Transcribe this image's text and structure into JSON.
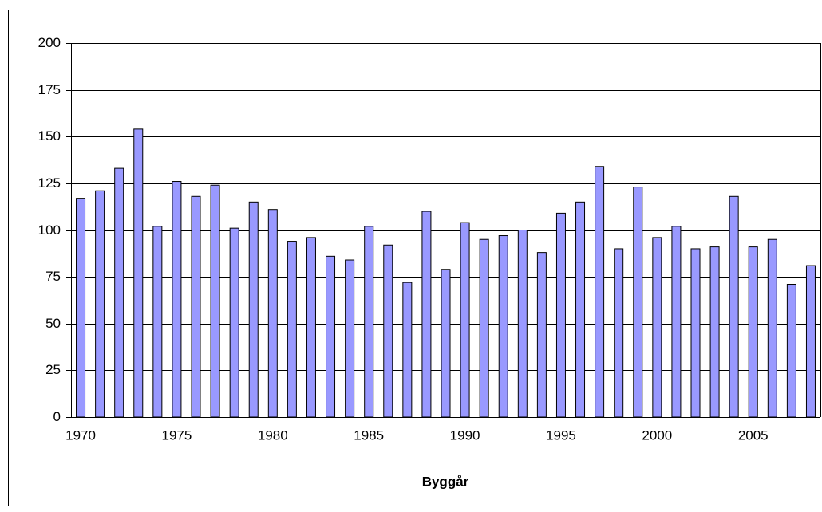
{
  "chart_data": {
    "type": "bar",
    "x_label": "Byggår",
    "categories": [
      "1970",
      null,
      null,
      null,
      null,
      "1975",
      null,
      null,
      null,
      null,
      "1980",
      null,
      null,
      null,
      null,
      "1985",
      null,
      null,
      null,
      null,
      "1990",
      null,
      null,
      null,
      null,
      "1995",
      null,
      null,
      null,
      null,
      "2000",
      null,
      null,
      null,
      null,
      "2005",
      null,
      null,
      null
    ],
    "values": [
      117,
      121,
      133,
      154,
      102,
      126,
      118,
      124,
      101,
      115,
      111,
      94,
      96,
      86,
      84,
      102,
      92,
      72,
      110,
      79,
      104,
      95,
      97,
      100,
      88,
      109,
      115,
      134,
      90,
      123,
      96,
      102,
      90,
      91,
      118,
      91,
      95,
      71,
      81
    ],
    "color": "#9999ff",
    "ylim": [
      0,
      200
    ],
    "yticks": [
      0,
      25,
      50,
      75,
      100,
      125,
      150,
      175,
      200
    ],
    "grid": true
  }
}
